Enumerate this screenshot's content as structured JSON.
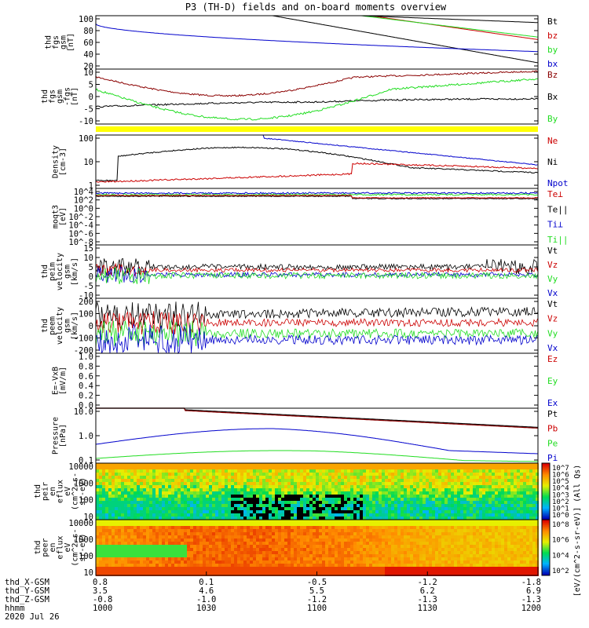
{
  "title": "P3 (TH-D) fields and on-board moments overview",
  "colors": {
    "black": "#000000",
    "red": "#cc0000",
    "green": "#22dd22",
    "blue": "#0000cc",
    "darkred": "#8b0000",
    "yellow": "#ffff00"
  },
  "chart_data": [
    {
      "type": "line",
      "ylabel": [
        "thd",
        "fgs",
        "gsm",
        "[nT]"
      ],
      "yticks": [
        "100",
        "80",
        "60",
        "40",
        "20"
      ],
      "legend": [
        {
          "label": "Bt",
          "color": "#000000"
        },
        {
          "label": "bz",
          "color": "#cc0000"
        },
        {
          "label": "by",
          "color": "#22dd22"
        },
        {
          "label": "bx",
          "color": "#0000cc"
        }
      ]
    },
    {
      "type": "line",
      "ylabel": [
        "thd",
        "fgs",
        "gsm",
        "-fgs",
        "[nT]"
      ],
      "yticks": [
        "10",
        "5",
        "0",
        "-5",
        "-10"
      ],
      "legend": [
        {
          "label": "Bz",
          "color": "#8b0000"
        },
        {
          "label": "Bx",
          "color": "#000000"
        },
        {
          "label": "By",
          "color": "#22dd22"
        }
      ]
    },
    {
      "type": "line",
      "ylabel": [
        "Density",
        "[cm-3]"
      ],
      "yticks": [
        "100",
        "10",
        "1"
      ],
      "legend": [
        {
          "label": "Ne",
          "color": "#cc0000"
        },
        {
          "label": "Ni",
          "color": "#000000"
        },
        {
          "label": "Npot",
          "color": "#0000cc"
        }
      ]
    },
    {
      "type": "line",
      "ylabel": [
        "moqt3",
        "[eV]"
      ],
      "yticks": [
        "10^4",
        "10^2",
        "10^0",
        "10^-2",
        "10^-4",
        "10^-6",
        "10^-8"
      ],
      "legend": [
        {
          "label": "Te⊥",
          "color": "#cc0000"
        },
        {
          "label": "Te||",
          "color": "#000000"
        },
        {
          "label": "Ti⊥",
          "color": "#0000cc"
        },
        {
          "label": "Ti||",
          "color": "#22dd22"
        }
      ]
    },
    {
      "type": "line",
      "ylabel": [
        "thd",
        "peim",
        "velocity",
        "gsm",
        "[km/s]"
      ],
      "yticks": [
        "15",
        "10",
        "5",
        "0",
        "-5",
        "-10"
      ],
      "legend": [
        {
          "label": "Vt",
          "color": "#000000"
        },
        {
          "label": "Vz",
          "color": "#cc0000"
        },
        {
          "label": "Vy",
          "color": "#22dd22"
        },
        {
          "label": "Vx",
          "color": "#0000cc"
        }
      ]
    },
    {
      "type": "line",
      "ylabel": [
        "thd",
        "peem",
        "velocity",
        "gsm",
        "[km/s]"
      ],
      "yticks": [
        "200",
        "100",
        "0",
        "-100",
        "-200"
      ],
      "legend": [
        {
          "label": "Vt",
          "color": "#000000"
        },
        {
          "label": "Vz",
          "color": "#cc0000"
        },
        {
          "label": "Vy",
          "color": "#22dd22"
        },
        {
          "label": "Vx",
          "color": "#0000cc"
        }
      ]
    },
    {
      "type": "line",
      "ylabel": [
        "E=-VxB",
        "[mV/m]"
      ],
      "yticks": [
        "1.0",
        "0.8",
        "0.6",
        "0.4",
        "0.2",
        "0.0"
      ],
      "legend": [
        {
          "label": "Ez",
          "color": "#cc0000"
        },
        {
          "label": "Ey",
          "color": "#22dd22"
        },
        {
          "label": "Ex",
          "color": "#0000cc"
        }
      ]
    },
    {
      "type": "line",
      "ylabel": [
        "Pressure",
        "[nPa]"
      ],
      "yticks": [
        "10.0",
        "1.0",
        "0.1"
      ],
      "legend": [
        {
          "label": "Pt",
          "color": "#000000"
        },
        {
          "label": "Pb",
          "color": "#cc0000"
        },
        {
          "label": "Pe",
          "color": "#22dd22"
        },
        {
          "label": "Pi",
          "color": "#0000cc"
        }
      ]
    },
    {
      "type": "heatmap",
      "ylabel": [
        "thd",
        "peir",
        "en",
        "eflux",
        "eV",
        "(cm^2-s-",
        "sr-eV)"
      ],
      "yticks": [
        "10000",
        "1000",
        "100",
        "10"
      ]
    },
    {
      "type": "heatmap",
      "ylabel": [
        "thd",
        "peer",
        "en",
        "eflux",
        "eV",
        "(cm^2-s-",
        "sr-eV)"
      ],
      "yticks": [
        "10000",
        "1000",
        "100",
        "10"
      ]
    }
  ],
  "colorbar": {
    "top": {
      "ticks": [
        "10^7",
        "10^6",
        "10^5",
        "10^4",
        "10^3",
        "10^2",
        "10^1",
        "10^0"
      ]
    },
    "bottom": {
      "ticks": [
        "10^8",
        "10^6",
        "10^4",
        "10^2"
      ]
    },
    "label": "[eV/(cm^2-s-sr-eV)] (All Qs)"
  },
  "xaxis": {
    "rows": [
      {
        "label": "thd_X-GSM",
        "values": [
          "0.8",
          "0.1",
          "-0.5",
          "-1.2",
          "-1.8"
        ]
      },
      {
        "label": "thd_Y-GSM",
        "values": [
          "3.5",
          "4.6",
          "5.5",
          "6.2",
          "6.9"
        ]
      },
      {
        "label": "thd_Z-GSM",
        "values": [
          "-0.8",
          "-1.0",
          "-1.2",
          "-1.3",
          "-1.3"
        ]
      },
      {
        "label": "hhmm",
        "values": [
          "1000",
          "1030",
          "1100",
          "1130",
          "1200"
        ]
      }
    ],
    "date": "2020 Jul 26"
  }
}
